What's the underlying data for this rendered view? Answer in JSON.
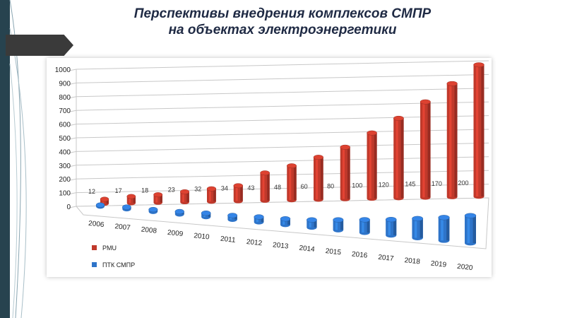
{
  "slide": {
    "title_line1": "Перспективы внедрения комплексов СМПР",
    "title_line2": "на объектах электроэнергетики"
  },
  "colors": {
    "stripe": "#27434f",
    "title": "#1f2a44",
    "pmu": "#c0392b",
    "ptk": "#2e74c9"
  },
  "chart_data": {
    "type": "bar",
    "style": "3d-cylinder",
    "categories": [
      "2006",
      "2007",
      "2008",
      "2009",
      "2010",
      "2011",
      "2012",
      "2013",
      "2014",
      "2015",
      "2016",
      "2017",
      "2018",
      "2019",
      "2020"
    ],
    "ylim": [
      0,
      1000
    ],
    "yticks": [
      "0",
      "100",
      "200",
      "300",
      "400",
      "500",
      "600",
      "700",
      "800",
      "900",
      "1000"
    ],
    "grid": true,
    "legend_position": "bottom-left",
    "series": [
      {
        "name": "PMU",
        "color": "#c0392b",
        "values": [
          40,
          60,
          70,
          90,
          110,
          130,
          230,
          280,
          340,
          410,
          510,
          610,
          720,
          840,
          960
        ]
      },
      {
        "name": "ПТК СМПР",
        "color": "#2e74c9",
        "values": [
          12,
          17,
          18,
          23,
          32,
          34,
          43,
          48,
          60,
          80,
          100,
          120,
          145,
          170,
          200
        ],
        "labels": [
          "12",
          "17",
          "18",
          "23",
          "32",
          "34",
          "43",
          "48",
          "60",
          "80",
          "100",
          "120",
          "145",
          "170",
          "200"
        ]
      }
    ]
  }
}
